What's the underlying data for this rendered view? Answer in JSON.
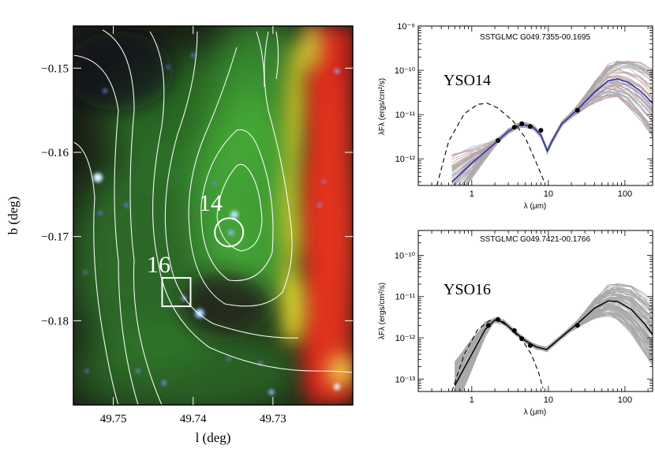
{
  "colors": {
    "image_bg": "#1a1f16",
    "green_emission": "#3fa833",
    "red_emission": "#d8281c",
    "yellow_emission": "#e6e02a",
    "contour": "#ffffff",
    "fit_gray": "#a8a8a8",
    "fit_pink": "#e0a0a0",
    "fit_blue": "#9c9cd0",
    "best_fit_blue": "#2030a0"
  },
  "chart_data": [
    {
      "type": "image",
      "xlabel": "l (deg)",
      "ylabel": "b (deg)",
      "xlim": [
        49.755,
        49.72
      ],
      "ylim": [
        -0.19,
        -0.145
      ],
      "xticks": [
        {
          "value": 49.75,
          "label": "49.75"
        },
        {
          "value": 49.74,
          "label": "49.74"
        },
        {
          "value": 49.73,
          "label": "49.73"
        }
      ],
      "yticks": [
        {
          "value": -0.15,
          "label": "−0.15"
        },
        {
          "value": -0.16,
          "label": "−0.16"
        },
        {
          "value": -0.17,
          "label": "−0.17"
        },
        {
          "value": -0.18,
          "label": "−0.18"
        }
      ],
      "markers": [
        {
          "label": "14",
          "shape": "circle",
          "l": 49.7355,
          "b": -0.1695
        },
        {
          "label": "16",
          "shape": "square",
          "l": 49.7421,
          "b": -0.1766
        }
      ]
    },
    {
      "type": "line",
      "title": "SSTGLMC G049.7355-00.1695",
      "label": "YSO14",
      "xlabel": "λ (μm)",
      "ylabel": "λFλ (ergs/cm²/s)",
      "xscale": "log",
      "yscale": "log",
      "xlim": [
        0.2,
        230
      ],
      "ylim": [
        2.5e-13,
        1e-09
      ],
      "xticks": [
        {
          "value": 1,
          "label": "1"
        },
        {
          "value": 10,
          "label": "10"
        },
        {
          "value": 100,
          "label": "100"
        }
      ],
      "yticks": [
        {
          "value": 1e-09,
          "label": "10⁻⁹"
        },
        {
          "value": 1e-10,
          "label": "10⁻¹⁰"
        },
        {
          "value": 1e-11,
          "label": "10⁻¹¹"
        },
        {
          "value": 1e-12,
          "label": "10⁻¹²"
        }
      ],
      "photometry": [
        [
          2.2,
          2.6e-12
        ],
        [
          3.6,
          5.2e-12
        ],
        [
          4.5,
          6.2e-12
        ],
        [
          5.8,
          5.4e-12
        ],
        [
          8.0,
          4.4e-12
        ],
        [
          24,
          1.25e-11
        ]
      ],
      "best_fit": [
        [
          0.55,
          3e-13
        ],
        [
          1.0,
          8e-13
        ],
        [
          1.6,
          1.6e-12
        ],
        [
          2.2,
          2.6e-12
        ],
        [
          3.0,
          4.2e-12
        ],
        [
          4.0,
          5.6e-12
        ],
        [
          5.0,
          5.8e-12
        ],
        [
          6.5,
          5e-12
        ],
        [
          8.0,
          3.4e-12
        ],
        [
          9.7,
          1.5e-12
        ],
        [
          11,
          2.4e-12
        ],
        [
          15,
          6.2e-12
        ],
        [
          24,
          1.3e-11
        ],
        [
          40,
          3.2e-11
        ],
        [
          60,
          5.8e-11
        ],
        [
          80,
          6.4e-11
        ],
        [
          110,
          5.4e-11
        ],
        [
          160,
          3.4e-11
        ],
        [
          230,
          1.8e-11
        ]
      ],
      "stellar_photosphere": [
        [
          0.35,
          2.5e-13
        ],
        [
          0.5,
          2.5e-12
        ],
        [
          0.8,
          1.05e-11
        ],
        [
          1.2,
          1.7e-11
        ],
        [
          1.6,
          1.8e-11
        ],
        [
          2.2,
          1.4e-11
        ],
        [
          3.5,
          7e-12
        ],
        [
          5.0,
          3e-12
        ],
        [
          7.0,
          8e-13
        ],
        [
          9.0,
          2.8e-13
        ]
      ]
    },
    {
      "type": "line",
      "title": "SSTGLMC G049.7421-00.1766",
      "label": "YSO16",
      "xlabel": "λ (μm)",
      "ylabel": "λFλ (ergs/cm²/s)",
      "xscale": "log",
      "yscale": "log",
      "xlim": [
        0.2,
        230
      ],
      "ylim": [
        5e-14,
        4e-10
      ],
      "xticks": [
        {
          "value": 1,
          "label": "1"
        },
        {
          "value": 10,
          "label": "10"
        },
        {
          "value": 100,
          "label": "100"
        }
      ],
      "yticks": [
        {
          "value": 1e-10,
          "label": "10⁻¹⁰"
        },
        {
          "value": 1e-11,
          "label": "10⁻¹¹"
        },
        {
          "value": 1e-12,
          "label": "10⁻¹²"
        },
        {
          "value": 1e-13,
          "label": "10⁻¹³"
        }
      ],
      "photometry": [
        [
          1.65,
          2e-12
        ],
        [
          2.2,
          2.8e-12
        ],
        [
          3.6,
          1.5e-12
        ],
        [
          4.5,
          9.5e-13
        ],
        [
          5.8,
          6.5e-13
        ],
        [
          24,
          2e-12
        ]
      ],
      "best_fit": [
        [
          0.6,
          7e-14
        ],
        [
          1.0,
          4e-13
        ],
        [
          1.5,
          1.6e-12
        ],
        [
          2.0,
          2.7e-12
        ],
        [
          2.6,
          2.4e-12
        ],
        [
          3.6,
          1.4e-12
        ],
        [
          5.0,
          8.5e-13
        ],
        [
          7.0,
          6e-13
        ],
        [
          9.5,
          5.2e-13
        ],
        [
          12,
          7.5e-13
        ],
        [
          17,
          1.3e-12
        ],
        [
          24,
          2.2e-12
        ],
        [
          40,
          5.2e-12
        ],
        [
          60,
          7.8e-12
        ],
        [
          80,
          7.6e-12
        ],
        [
          120,
          5e-12
        ],
        [
          180,
          2.2e-12
        ],
        [
          230,
          1.2e-12
        ]
      ],
      "stellar_photosphere": [
        [
          0.55,
          5e-14
        ],
        [
          0.8,
          4e-13
        ],
        [
          1.2,
          1.6e-12
        ],
        [
          1.7,
          2.6e-12
        ],
        [
          2.2,
          2.7e-12
        ],
        [
          3.0,
          1.9e-12
        ],
        [
          4.5,
          9e-13
        ],
        [
          6.0,
          4e-13
        ],
        [
          7.5,
          1.4e-13
        ],
        [
          8.5,
          6e-14
        ]
      ]
    }
  ]
}
